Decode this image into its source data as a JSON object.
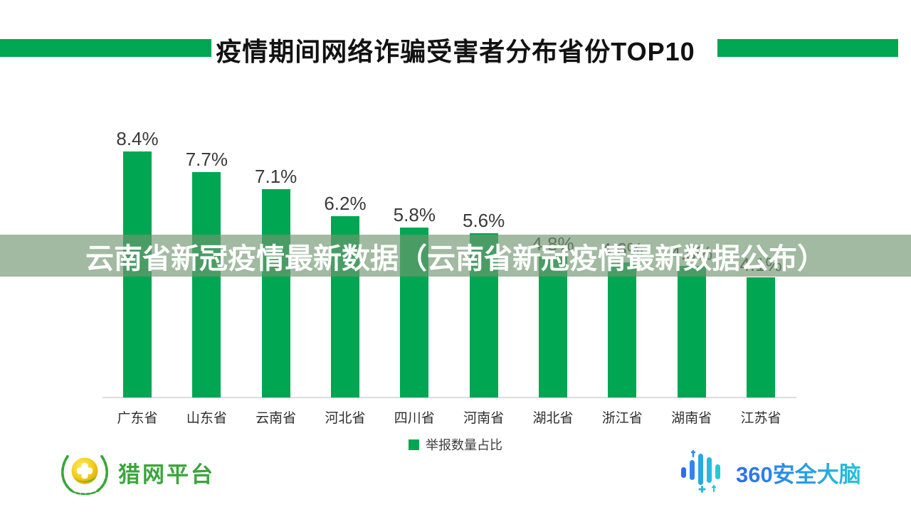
{
  "header": {
    "title": "疫情期间网络诈骗受害者分布省份TOP10"
  },
  "overlay": {
    "text": "云南省新冠疫情最新数据（云南省新冠疫情最新数据公布）",
    "text_color": "#ffffff",
    "band_color": "rgba(112,150,112,0.66)"
  },
  "chart_data": {
    "type": "bar",
    "title": "疫情期间网络诈骗受害者分布省份TOP10",
    "categories": [
      "广东省",
      "山东省",
      "云南省",
      "河北省",
      "四川省",
      "河南省",
      "湖北省",
      "浙江省",
      "湖南省",
      "江苏省"
    ],
    "values": [
      8.4,
      7.7,
      7.1,
      6.2,
      5.8,
      5.6,
      4.8,
      4.6,
      4.5,
      4.1
    ],
    "value_labels": [
      "8.4%",
      "7.7%",
      "7.1%",
      "6.2%",
      "5.8%",
      "5.6%",
      "4.8%",
      "4.6%",
      "4.5%",
      "4.1%"
    ],
    "legend": [
      "举报数量占比"
    ],
    "legend_position": "bottom",
    "xlabel": "",
    "ylabel": "",
    "ylim": [
      0,
      9
    ],
    "grid": false,
    "bar_color": "#00a651"
  },
  "legend": {
    "label": "举报数量占比"
  },
  "footer": {
    "left_logo": "猎网平台",
    "right_logo": "360安全大脑"
  },
  "colors": {
    "accent_green": "#00a651",
    "title_text": "#121212",
    "axis_line": "#dcdcdc",
    "value_text": "#3a3a3a",
    "liewang_green": "#3ba53b",
    "brain_blue": "#2f6cf1",
    "brain_teal": "#25c4da"
  }
}
